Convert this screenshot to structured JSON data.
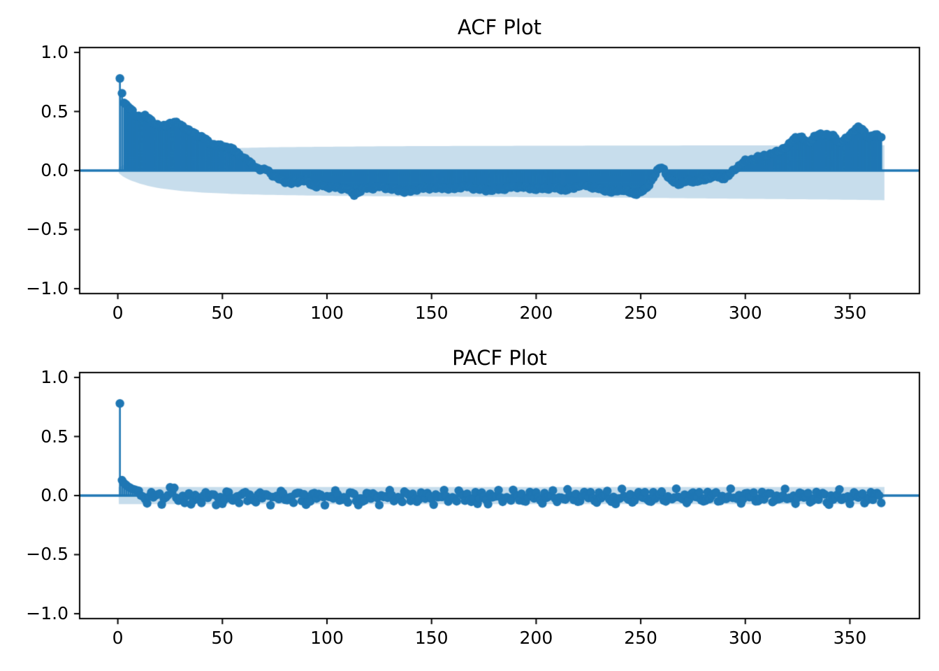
{
  "figure": {
    "background": "#ffffff"
  },
  "colors": {
    "line": "#1f77b4",
    "band": "#1f77b4",
    "band_alpha": 0.25,
    "spine": "#000000",
    "text": "#000000"
  },
  "chart_data": [
    {
      "type": "stem",
      "title": "ACF Plot",
      "n_lags": 365,
      "xlim": [
        -18.25,
        383.25
      ],
      "ylim": [
        -1.042,
        1.042
      ],
      "grid": false,
      "x_ticks": {
        "values": [
          0,
          50,
          100,
          150,
          200,
          250,
          300,
          350
        ],
        "labels": [
          "0",
          "50",
          "100",
          "150",
          "200",
          "250",
          "300",
          "350"
        ]
      },
      "y_ticks": {
        "values": [
          1.0,
          0.5,
          0.0,
          -0.5,
          -1.0
        ],
        "labels": [
          "1.0",
          "0.5",
          "0.0",
          "−0.5",
          "−1.0"
        ]
      },
      "acf_control_points": [
        [
          1,
          0.78
        ],
        [
          2,
          0.655
        ],
        [
          3,
          0.578
        ],
        [
          4,
          0.558
        ],
        [
          5,
          0.545
        ],
        [
          6,
          0.52
        ],
        [
          7,
          0.5
        ],
        [
          8,
          0.472
        ],
        [
          9,
          0.465
        ],
        [
          10,
          0.462
        ],
        [
          11,
          0.458
        ],
        [
          12,
          0.458
        ],
        [
          13,
          0.46
        ],
        [
          14,
          0.452
        ],
        [
          15,
          0.44
        ],
        [
          16,
          0.425
        ],
        [
          17,
          0.41
        ],
        [
          18,
          0.395
        ],
        [
          19,
          0.385
        ],
        [
          20,
          0.376
        ],
        [
          21,
          0.372
        ],
        [
          22,
          0.378
        ],
        [
          23,
          0.386
        ],
        [
          24,
          0.395
        ],
        [
          25,
          0.4
        ],
        [
          26,
          0.403
        ],
        [
          27,
          0.405
        ],
        [
          28,
          0.402
        ],
        [
          29,
          0.397
        ],
        [
          30,
          0.39
        ],
        [
          31,
          0.378
        ],
        [
          32,
          0.362
        ],
        [
          33,
          0.348
        ],
        [
          34,
          0.336
        ],
        [
          35,
          0.33
        ],
        [
          36,
          0.322
        ],
        [
          37,
          0.314
        ],
        [
          38,
          0.3
        ],
        [
          39,
          0.29
        ],
        [
          40,
          0.284
        ],
        [
          41,
          0.278
        ],
        [
          42,
          0.262
        ],
        [
          43,
          0.248
        ],
        [
          44,
          0.235
        ],
        [
          45,
          0.226
        ],
        [
          46,
          0.22
        ],
        [
          47,
          0.217
        ],
        [
          48,
          0.213
        ],
        [
          49,
          0.21
        ],
        [
          50,
          0.207
        ],
        [
          51,
          0.204
        ],
        [
          52,
          0.201
        ],
        [
          53,
          0.197
        ],
        [
          54,
          0.19
        ],
        [
          55,
          0.178
        ],
        [
          56,
          0.165
        ],
        [
          57,
          0.153
        ],
        [
          58,
          0.138
        ],
        [
          59,
          0.122
        ],
        [
          60,
          0.11
        ],
        [
          61,
          0.098
        ],
        [
          62,
          0.085
        ],
        [
          63,
          0.07
        ],
        [
          64,
          0.057
        ],
        [
          65,
          0.044
        ],
        [
          66,
          0.03
        ],
        [
          67,
          0.018
        ],
        [
          68,
          0.008
        ],
        [
          69,
          0.003
        ],
        [
          70,
          0.006
        ],
        [
          71,
          0.012
        ],
        [
          72,
          0.0
        ],
        [
          73,
          -0.022
        ],
        [
          74,
          -0.04
        ],
        [
          75,
          -0.055
        ],
        [
          76,
          -0.064
        ],
        [
          77,
          -0.07
        ],
        [
          78,
          -0.078
        ],
        [
          79,
          -0.085
        ],
        [
          80,
          -0.092
        ],
        [
          81,
          -0.1
        ],
        [
          82,
          -0.107
        ],
        [
          83,
          -0.11
        ],
        [
          84,
          -0.105
        ],
        [
          85,
          -0.1
        ],
        [
          86,
          -0.094
        ],
        [
          87,
          -0.09
        ],
        [
          88,
          -0.087
        ],
        [
          89,
          -0.086
        ],
        [
          90,
          -0.09
        ],
        [
          91,
          -0.1
        ],
        [
          92,
          -0.112
        ],
        [
          93,
          -0.124
        ],
        [
          94,
          -0.13
        ],
        [
          95,
          -0.132
        ],
        [
          96,
          -0.126
        ],
        [
          98,
          -0.128
        ],
        [
          100,
          -0.14
        ],
        [
          102,
          -0.138
        ],
        [
          104,
          -0.143
        ],
        [
          106,
          -0.15
        ],
        [
          108,
          -0.148
        ],
        [
          110,
          -0.158
        ],
        [
          112,
          -0.195
        ],
        [
          113,
          -0.205
        ],
        [
          115,
          -0.185
        ],
        [
          117,
          -0.157
        ],
        [
          119,
          -0.15
        ],
        [
          121,
          -0.15
        ],
        [
          123,
          -0.145
        ],
        [
          125,
          -0.138
        ],
        [
          127,
          -0.14
        ],
        [
          129,
          -0.15
        ],
        [
          131,
          -0.158
        ],
        [
          133,
          -0.162
        ],
        [
          135,
          -0.17
        ],
        [
          137,
          -0.178
        ],
        [
          139,
          -0.18
        ],
        [
          141,
          -0.17
        ],
        [
          143,
          -0.158
        ],
        [
          145,
          -0.153
        ],
        [
          147,
          -0.15
        ],
        [
          150,
          -0.148
        ],
        [
          153,
          -0.15
        ],
        [
          156,
          -0.147
        ],
        [
          158,
          -0.152
        ],
        [
          160,
          -0.157
        ],
        [
          162,
          -0.148
        ],
        [
          164,
          -0.139
        ],
        [
          166,
          -0.134
        ],
        [
          168,
          -0.142
        ],
        [
          170,
          -0.15
        ],
        [
          172,
          -0.155
        ],
        [
          174,
          -0.162
        ],
        [
          176,
          -0.168
        ],
        [
          178,
          -0.165
        ],
        [
          180,
          -0.162
        ],
        [
          182,
          -0.159
        ],
        [
          184,
          -0.156
        ],
        [
          186,
          -0.15
        ],
        [
          188,
          -0.143
        ],
        [
          190,
          -0.139
        ],
        [
          192,
          -0.138
        ],
        [
          194,
          -0.142
        ],
        [
          196,
          -0.148
        ],
        [
          198,
          -0.153
        ],
        [
          200,
          -0.156
        ],
        [
          202,
          -0.155
        ],
        [
          204,
          -0.152
        ],
        [
          206,
          -0.15
        ],
        [
          208,
          -0.148
        ],
        [
          210,
          -0.151
        ],
        [
          212,
          -0.157
        ],
        [
          214,
          -0.167
        ],
        [
          216,
          -0.156
        ],
        [
          218,
          -0.146
        ],
        [
          220,
          -0.131
        ],
        [
          222,
          -0.122
        ],
        [
          224,
          -0.128
        ],
        [
          226,
          -0.136
        ],
        [
          228,
          -0.148
        ],
        [
          230,
          -0.156
        ],
        [
          232,
          -0.163
        ],
        [
          234,
          -0.172
        ],
        [
          236,
          -0.184
        ],
        [
          238,
          -0.175
        ],
        [
          240,
          -0.162
        ],
        [
          242,
          -0.167
        ],
        [
          244,
          -0.182
        ],
        [
          246,
          -0.192
        ],
        [
          248,
          -0.196
        ],
        [
          250,
          -0.184
        ],
        [
          252,
          -0.163
        ],
        [
          254,
          -0.118
        ],
        [
          256,
          -0.06
        ],
        [
          258,
          -0.005
        ],
        [
          259,
          0.02
        ],
        [
          260,
          0.028
        ],
        [
          261,
          0.012
        ],
        [
          262,
          -0.022
        ],
        [
          263,
          -0.052
        ],
        [
          264,
          -0.078
        ],
        [
          266,
          -0.1
        ],
        [
          268,
          -0.112
        ],
        [
          270,
          -0.105
        ],
        [
          272,
          -0.093
        ],
        [
          274,
          -0.09
        ],
        [
          276,
          -0.092
        ],
        [
          278,
          -0.089
        ],
        [
          280,
          -0.08
        ],
        [
          282,
          -0.068
        ],
        [
          284,
          -0.055
        ],
        [
          285,
          -0.046
        ],
        [
          286,
          -0.05
        ],
        [
          288,
          -0.062
        ],
        [
          290,
          -0.064
        ],
        [
          292,
          -0.045
        ],
        [
          293,
          -0.025
        ],
        [
          294,
          -0.005
        ],
        [
          295,
          0.01
        ],
        [
          296,
          0.026
        ],
        [
          297,
          0.04
        ],
        [
          298,
          0.055
        ],
        [
          299,
          0.068
        ],
        [
          300,
          0.08
        ],
        [
          302,
          0.09
        ],
        [
          304,
          0.1
        ],
        [
          306,
          0.11
        ],
        [
          308,
          0.12
        ],
        [
          310,
          0.134
        ],
        [
          312,
          0.136
        ],
        [
          314,
          0.15
        ],
        [
          316,
          0.166
        ],
        [
          318,
          0.185
        ],
        [
          320,
          0.2
        ],
        [
          321,
          0.22
        ],
        [
          322,
          0.245
        ],
        [
          323,
          0.268
        ],
        [
          324,
          0.28
        ],
        [
          325,
          0.285
        ],
        [
          326,
          0.284
        ],
        [
          327,
          0.275
        ],
        [
          328,
          0.262
        ],
        [
          329,
          0.25
        ],
        [
          330,
          0.241
        ],
        [
          331,
          0.25
        ],
        [
          332,
          0.268
        ],
        [
          333,
          0.285
        ],
        [
          334,
          0.295
        ],
        [
          335,
          0.3
        ],
        [
          336,
          0.305
        ],
        [
          337,
          0.308
        ],
        [
          338,
          0.31
        ],
        [
          339,
          0.305
        ],
        [
          340,
          0.3
        ],
        [
          341,
          0.295
        ],
        [
          342,
          0.29
        ],
        [
          343,
          0.282
        ],
        [
          344,
          0.252
        ],
        [
          345,
          0.24
        ],
        [
          346,
          0.248
        ],
        [
          347,
          0.256
        ],
        [
          348,
          0.266
        ],
        [
          349,
          0.28
        ],
        [
          350,
          0.3
        ],
        [
          351,
          0.32
        ],
        [
          352,
          0.345
        ],
        [
          353,
          0.36
        ],
        [
          354,
          0.365
        ],
        [
          355,
          0.358
        ],
        [
          356,
          0.345
        ],
        [
          357,
          0.322
        ],
        [
          358,
          0.3
        ],
        [
          359,
          0.287
        ],
        [
          360,
          0.29
        ],
        [
          361,
          0.3
        ],
        [
          362,
          0.3
        ],
        [
          363,
          0.295
        ],
        [
          364,
          0.29
        ],
        [
          365,
          0.285
        ]
      ],
      "micro_wiggle": {
        "components": [
          [
            0.007,
            2.1,
            0.0
          ],
          [
            0.005,
            0.9,
            2.0
          ]
        ]
      },
      "conf_band": {
        "lag_start": 0.3,
        "lag_end": 366.5,
        "lags": [
          0.3,
          2,
          4,
          6,
          10,
          15,
          20,
          30,
          40,
          55,
          70,
          90,
          110,
          130,
          160,
          200,
          250,
          300,
          340,
          366.5
        ],
        "upper": [
          0.02,
          0.04,
          0.06,
          0.075,
          0.1,
          0.125,
          0.142,
          0.163,
          0.177,
          0.19,
          0.196,
          0.2,
          0.203,
          0.206,
          0.208,
          0.21,
          0.212,
          0.213,
          0.214,
          0.215
        ],
        "lower": [
          -0.02,
          -0.045,
          -0.065,
          -0.082,
          -0.108,
          -0.133,
          -0.15,
          -0.172,
          -0.186,
          -0.198,
          -0.205,
          -0.211,
          -0.215,
          -0.218,
          -0.221,
          -0.225,
          -0.231,
          -0.239,
          -0.245,
          -0.251
        ]
      }
    },
    {
      "type": "stem",
      "title": "PACF Plot",
      "n_lags": 365,
      "xlim": [
        -18.25,
        383.25
      ],
      "ylim": [
        -1.042,
        1.042
      ],
      "grid": false,
      "x_ticks": {
        "values": [
          0,
          50,
          100,
          150,
          200,
          250,
          300,
          350
        ],
        "labels": [
          "0",
          "50",
          "100",
          "150",
          "200",
          "250",
          "300",
          "350"
        ]
      },
      "y_ticks": {
        "values": [
          1.0,
          0.5,
          0.0,
          -0.5,
          -1.0
        ],
        "labels": [
          "1.0",
          "0.5",
          "0.0",
          "−0.5",
          "−1.0"
        ]
      },
      "spike": {
        "lag": 1,
        "value": 0.78
      },
      "early_values": [
        0.13,
        0.105,
        0.09,
        0.075,
        0.065,
        0.055,
        0.05,
        0.045,
        0.04
      ],
      "noise": {
        "start_lag": 11,
        "bias": -0.012,
        "components": [
          [
            0.03,
            1.7,
            0.0
          ],
          [
            0.024,
            0.73,
            1.3
          ],
          [
            0.018,
            2.9,
            0.5
          ]
        ]
      },
      "outliers": {
        "25": 0.07,
        "27": 0.065,
        "35": -0.075,
        "50": -0.07,
        "90": -0.078,
        "115": -0.08,
        "172": -0.07,
        "238": -0.072,
        "340": -0.078
      },
      "conf_band": {
        "half_width": 0.072,
        "lag_start": 0.3,
        "lag_end": 366.5
      }
    }
  ]
}
